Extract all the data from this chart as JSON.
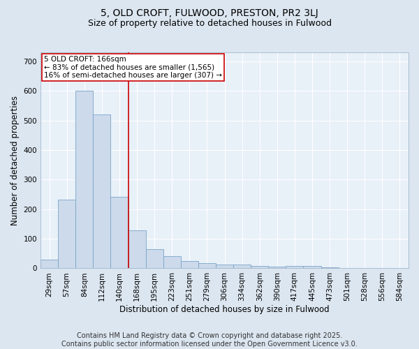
{
  "title": "5, OLD CROFT, FULWOOD, PRESTON, PR2 3LJ",
  "subtitle": "Size of property relative to detached houses in Fulwood",
  "xlabel": "Distribution of detached houses by size in Fulwood",
  "ylabel": "Number of detached properties",
  "categories": [
    "29sqm",
    "57sqm",
    "84sqm",
    "112sqm",
    "140sqm",
    "168sqm",
    "195sqm",
    "223sqm",
    "251sqm",
    "279sqm",
    "306sqm",
    "334sqm",
    "362sqm",
    "390sqm",
    "417sqm",
    "445sqm",
    "473sqm",
    "501sqm",
    "528sqm",
    "556sqm",
    "584sqm"
  ],
  "values": [
    30,
    232,
    600,
    520,
    242,
    128,
    65,
    42,
    25,
    18,
    12,
    13,
    8,
    6,
    8,
    7,
    3,
    2,
    1,
    0,
    2
  ],
  "bar_color": "#ccdaeb",
  "bar_edge_color": "#7ba4c8",
  "ref_line_index": 5,
  "ref_line_label": "5 OLD CROFT: 166sqm",
  "annotation_line1": "← 83% of detached houses are smaller (1,565)",
  "annotation_line2": "16% of semi-detached houses are larger (307) →",
  "annotation_box_color": "#ffffff",
  "annotation_box_edge_color": "#cc0000",
  "ref_line_color": "#cc0000",
  "ylim": [
    0,
    730
  ],
  "yticks": [
    0,
    100,
    200,
    300,
    400,
    500,
    600,
    700
  ],
  "background_color": "#dce6f0",
  "plot_bg_color": "#e8f0f8",
  "grid_color": "#ffffff",
  "footer_text": "Contains HM Land Registry data © Crown copyright and database right 2025.\nContains public sector information licensed under the Open Government Licence v3.0.",
  "title_fontsize": 10,
  "subtitle_fontsize": 9,
  "axis_label_fontsize": 8.5,
  "tick_fontsize": 7.5,
  "footer_fontsize": 7,
  "annotation_fontsize": 7.5
}
